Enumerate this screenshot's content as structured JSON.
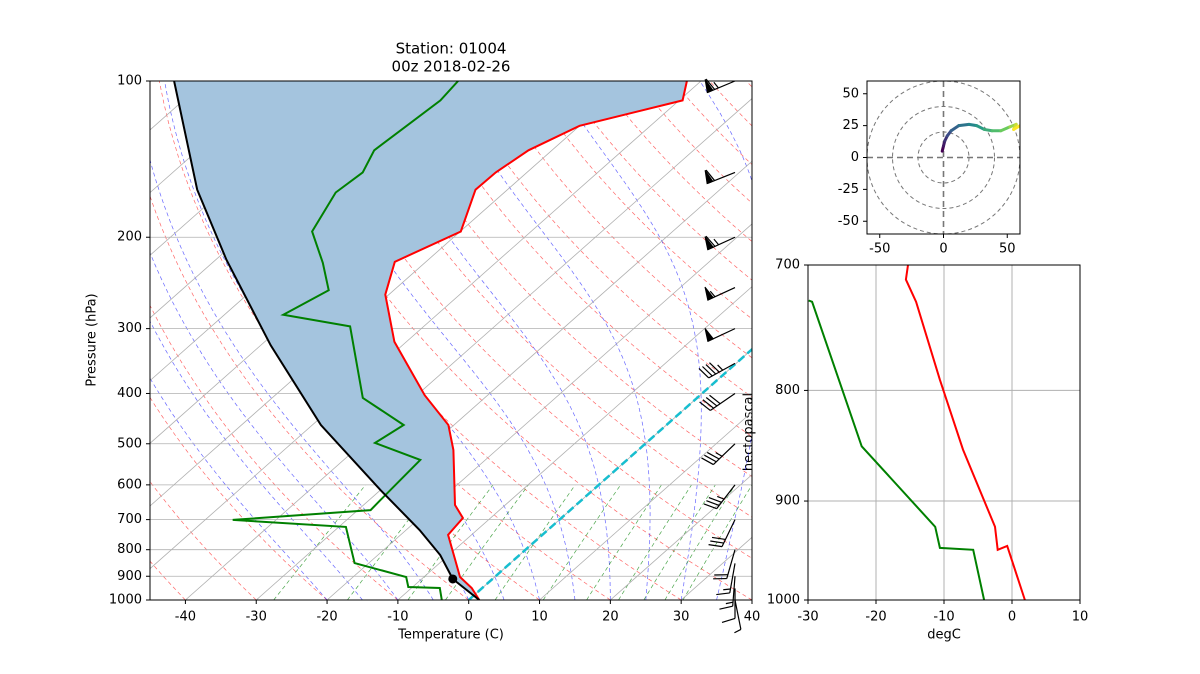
{
  "chart_data": [
    {
      "type": "skewt",
      "title": "Station: 01004",
      "subtitle": "00z 2018-02-26",
      "xlabel": "Temperature (C)",
      "ylabel": "Pressure (hPa)",
      "xlim": [
        -45,
        40
      ],
      "xticks": [
        -40,
        -30,
        -20,
        -10,
        0,
        10,
        20,
        30,
        40
      ],
      "ylim": [
        1000,
        100
      ],
      "yticks": [
        100,
        200,
        300,
        400,
        500,
        600,
        700,
        800,
        900,
        1000
      ],
      "log_y": true,
      "grid": true,
      "fill_color": "#a4c4de",
      "highlight_isotherm": 0,
      "highlight_color": "#17becf",
      "series": [
        {
          "color": "red",
          "pressure": [
            1000,
            948,
            903,
            837,
            749,
            695,
            656,
            514,
            460,
            403,
            318,
            258,
            223,
            195,
            162,
            150,
            136,
            122,
            109,
            100
          ],
          "values": [
            1.5,
            -1.5,
            -4.9,
            -8.3,
            -13.3,
            -13.9,
            -17.1,
            -26.1,
            -30.8,
            -38.9,
            -51.7,
            -60.5,
            -64.4,
            -59.9,
            -64.5,
            -64.4,
            -63.3,
            -60.0,
            -49.5,
            -52.0
          ]
        },
        {
          "color": "green",
          "pressure": [
            1000,
            948,
            944,
            903,
            849,
            723,
            701,
            671,
            642,
            537,
            498,
            460,
            408,
            297,
            282,
            253,
            224,
            195,
            164,
            150,
            136,
            109,
            100
          ],
          "values": [
            -3.8,
            -6.0,
            -10.6,
            -12.5,
            -22.0,
            -29.0,
            -46.1,
            -28.2,
            -28.4,
            -29.2,
            -38.3,
            -37.1,
            -47.2,
            -60.4,
            -71.7,
            -69.2,
            -74.4,
            -80.9,
            -83.8,
            -83.2,
            -85.1,
            -83.7,
            -84.3
          ]
        },
        {
          "color": "black",
          "pressure": [
            1000,
            911,
            819,
            733,
            614,
            460,
            323,
            221,
            162,
            100
          ],
          "values": [
            1.5,
            -5.6,
            -11.2,
            -18.1,
            -30.0,
            -48.8,
            -68.6,
            -88.5,
            -103.8,
            -124.4
          ]
        }
      ],
      "lcl": {
        "pressure": 911,
        "temperature": -5.6
      },
      "wind_pressure": [
        1000,
        950,
        900,
        850,
        800,
        700,
        600,
        500,
        400,
        350,
        300,
        250,
        200,
        150,
        100
      ]
    },
    {
      "type": "hodograph",
      "xlim": [
        -60,
        60
      ],
      "ylim": [
        -60,
        60
      ],
      "xticks": [
        -50,
        0,
        50
      ],
      "yticks": [
        -50,
        -25,
        0,
        25,
        50
      ],
      "colormap": "viridis",
      "x": [
        -1,
        0,
        1,
        3,
        6,
        12,
        20,
        26,
        32,
        38,
        45,
        52,
        57,
        55,
        60
      ],
      "y": [
        5,
        9,
        13,
        17,
        21,
        25,
        26,
        25,
        22,
        21,
        21,
        24,
        26,
        22,
        25
      ]
    },
    {
      "type": "line",
      "xlabel": "degC",
      "ylabel": "hectopascal",
      "xlim": [
        -30,
        10
      ],
      "xticks": [
        -30,
        -20,
        -10,
        0,
        10
      ],
      "ylim": [
        1000,
        700
      ],
      "yticks": [
        700,
        800,
        900,
        1000
      ],
      "log_y": true,
      "grid": true,
      "series": [
        {
          "color": "red",
          "pressure": [
            1000,
            944,
            948,
            925,
            852,
            791,
            728,
            711,
            700
          ],
          "values": [
            1.9,
            -0.7,
            -2.1,
            -2.5,
            -7.2,
            -10.6,
            -14.1,
            -15.6,
            -15.3
          ]
        },
        {
          "color": "green",
          "pressure": [
            1000,
            948,
            946,
            925,
            849,
            728,
            727
          ],
          "values": [
            -4.1,
            -5.7,
            -10.6,
            -11.3,
            -22.1,
            -29.4,
            -29.9
          ]
        }
      ]
    }
  ]
}
